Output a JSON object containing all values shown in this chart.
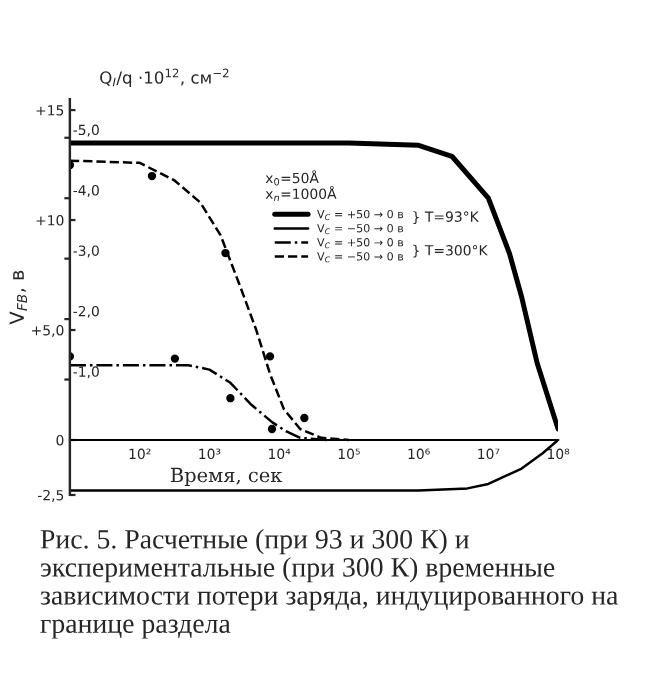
{
  "chart_data": {
    "type": "line",
    "xlabel": "Время, сек",
    "ylabel": "V$_{FB}$, в",
    "y2label": "Q$_{I}$/q ·10$^{12}$, см$^{−2}$",
    "log": "x",
    "xlim": [
      10,
      100000000
    ],
    "xticks": [
      {
        "value": 100,
        "label": "10²"
      },
      {
        "value": 1000,
        "label": "10³"
      },
      {
        "value": 10000,
        "label": "10⁴"
      },
      {
        "value": 100000,
        "label": "10⁵"
      },
      {
        "value": 1000000,
        "label": "10⁶"
      },
      {
        "value": 10000000,
        "label": "10⁷"
      },
      {
        "value": 100000000,
        "label": "10⁸"
      }
    ],
    "ylim": [
      -2.5,
      15.5
    ],
    "yticks": [
      {
        "value": -2.5,
        "label": "-2,5"
      },
      0,
      {
        "value": 5,
        "label": "+5,0"
      },
      {
        "value": 10,
        "label": "+10"
      },
      {
        "value": 15,
        "label": "+15"
      }
    ],
    "y2lim": [
      0.91,
      -5.64
    ],
    "y2ticks": [
      {
        "value": -1,
        "label": "-1,0"
      },
      {
        "value": -2,
        "label": "-2,0"
      },
      {
        "value": -3,
        "label": "-3,0"
      },
      {
        "value": -4,
        "label": "-4,0"
      },
      {
        "value": -5,
        "label": "-5,0"
      }
    ],
    "grid": false,
    "legend": "top right",
    "series": [
      {
        "name": "V$_{C}$ = +50 → 0 в",
        "color": "#000000",
        "line_style": "solid",
        "marker": "none",
        "x": [
          10,
          10000,
          100000,
          1000000,
          3000000,
          10000000,
          20000000,
          30000000,
          50000000,
          100000000
        ],
        "values": [
          13.5,
          13.5,
          13.5,
          13.4,
          12.9,
          11.0,
          8.5,
          6.5,
          3.5,
          0.5
        ]
      },
      {
        "name": "V$_{C}$ = −50 → 0 в",
        "color": "#000000",
        "line_style": "solid",
        "marker": "none",
        "x": [
          10,
          1000000,
          5000000,
          10000000,
          30000000,
          60000000,
          100000000
        ],
        "values": [
          -2.3,
          -2.3,
          -2.2,
          -2.0,
          -1.3,
          -0.6,
          0
        ]
      },
      {
        "name": "V$_{C}$ = +50 → 0 в",
        "color": "#000000",
        "line_style": "dashdot",
        "marker": "none",
        "x": [
          10,
          100,
          500,
          1000,
          2000,
          4000,
          8000,
          12500,
          20000,
          50000
        ],
        "values": [
          3.4,
          3.4,
          3.4,
          3.2,
          2.6,
          1.6,
          0.8,
          0.4,
          0.1,
          0.0
        ]
      },
      {
        "name": "V$_{C}$ = −50 → 0 в",
        "color": "#000000",
        "line_style": "dashed",
        "marker": "none",
        "x": [
          10,
          100,
          316,
          740,
          1450,
          2750,
          4700,
          7400,
          11700,
          20000,
          40000,
          100000
        ],
        "values": [
          12.7,
          12.6,
          11.8,
          10.8,
          9.3,
          7.0,
          5.0,
          3.0,
          1.4,
          0.5,
          0.1,
          0.0
        ]
      },
      {
        "type": "scatter",
        "color": "#000000",
        "marker": "circle",
        "x": [
          10,
          150,
          1700,
          7400,
          23000
        ],
        "values": [
          12.5,
          12.0,
          8.5,
          3.8,
          1.0
        ]
      },
      {
        "type": "scatter",
        "color": "#000000",
        "marker": "circle",
        "x": [
          10,
          320,
          2000,
          7900
        ],
        "values": [
          3.8,
          3.7,
          1.9,
          0.5
        ]
      }
    ],
    "annotations": [
      "x$_{0}$=50Å",
      "x$_{n}$=1000Å",
      "} T=93°K",
      "} T=300°K",
      "Рис. 5. Расчетные (при 93 и 300 К) и экспериментальные (при 300 К) временные зависимости потери заряда, индуцированного на границе раздела"
    ]
  }
}
